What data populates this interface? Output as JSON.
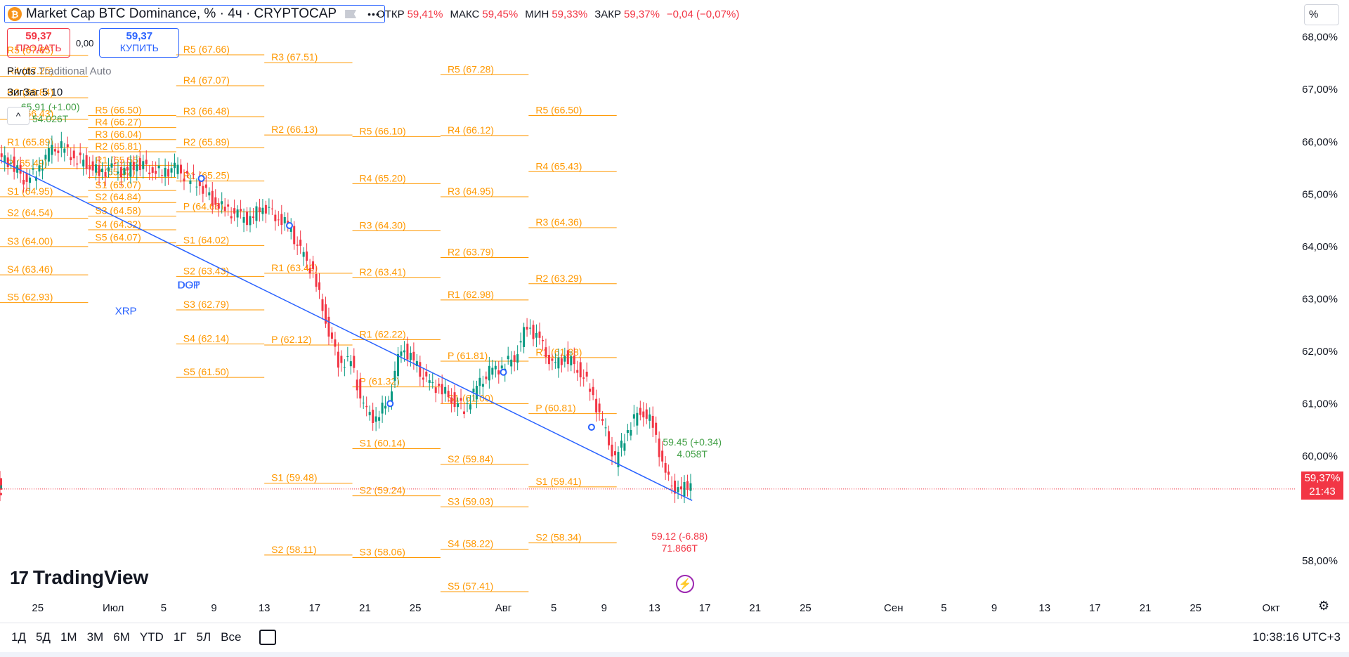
{
  "header": {
    "symbol_title": "Market Cap BTC Dominance, % · 4ч · CRYPTOCAP",
    "btc_icon_glyph": "₿",
    "ohlc": [
      {
        "k": "ОТКР",
        "v": "59,41%"
      },
      {
        "k": "МАКС",
        "v": "59,45%"
      },
      {
        "k": "МИН",
        "v": "59,33%"
      },
      {
        "k": "ЗАКР",
        "v": "59,37%"
      },
      {
        "k": "",
        "v": "−0,04 (−0,07%)"
      }
    ]
  },
  "trade": {
    "sell_price": "59,37",
    "sell_label": "ПРОДАТЬ",
    "spread": "0,00",
    "buy_price": "59,37",
    "buy_label": "КУПИТЬ"
  },
  "indicators": {
    "pivots_name": "Pivots",
    "pivots_params": "Traditional Auto",
    "zigzag_name": "ЗигЗаг",
    "zigzag_params": "5 10",
    "collapse_glyph": "^"
  },
  "scale": {
    "unit_button": "%"
  },
  "last_price": {
    "value": "59,37%",
    "countdown": "21:43"
  },
  "branding": {
    "logo_text": "TradingView",
    "logo_mark": "17"
  },
  "bottom_bar": {
    "ranges": [
      "1Д",
      "5Д",
      "1М",
      "3М",
      "6М",
      "YTD",
      "1Г",
      "5Л",
      "Все"
    ],
    "clock": "10:38:16 UTC+3"
  },
  "colors": {
    "up": "#089981",
    "down": "#f23645",
    "pivot": "#ff9800",
    "trend": "#2962ff",
    "grid_text": "#131722",
    "zigzag_up": "#43a047",
    "zigzag_down": "#f23645"
  },
  "chart_data": {
    "type": "candlestick",
    "title": "Market Cap BTC Dominance, %",
    "y_axis": {
      "unit": "%",
      "ticks": [
        "68,00%",
        "67,00%",
        "66,00%",
        "65,00%",
        "64,00%",
        "63,00%",
        "62,00%",
        "61,00%",
        "60,00%",
        "58,00%"
      ],
      "tick_values": [
        68,
        67,
        66,
        65,
        64,
        63,
        62,
        61,
        60,
        58
      ],
      "range": [
        56.9,
        68.6
      ]
    },
    "x_axis": {
      "labels": [
        "25",
        "Июл",
        "5",
        "9",
        "13",
        "17",
        "21",
        "25",
        "Авг",
        "5",
        "9",
        "13",
        "17",
        "21",
        "25",
        "Сен",
        "5",
        "9",
        "13",
        "17",
        "21",
        "25",
        "Окт"
      ],
      "label_dates": [
        "2024-06-25",
        "2024-07-01",
        "2024-07-05",
        "2024-07-09",
        "2024-07-13",
        "2024-07-17",
        "2024-07-21",
        "2024-07-25",
        "2024-08-01",
        "2024-08-05",
        "2024-08-09",
        "2024-08-13",
        "2024-08-17",
        "2024-08-21",
        "2024-08-25",
        "2024-09-01",
        "2024-09-05",
        "2024-09-09",
        "2024-09-13",
        "2024-09-17",
        "2024-09-21",
        "2024-09-25",
        "2024-10-01"
      ],
      "range": [
        "2024-06-22",
        "2024-10-03"
      ]
    },
    "candles_close_path": [
      [
        "2024-06-22",
        65.7
      ],
      [
        "2024-06-23",
        65.6
      ],
      [
        "2024-06-24",
        65.3
      ],
      [
        "2024-06-25",
        65.4
      ],
      [
        "2024-06-26",
        65.8
      ],
      [
        "2024-06-27",
        65.9
      ],
      [
        "2024-06-28",
        65.7
      ],
      [
        "2024-06-29",
        65.6
      ],
      [
        "2024-06-30",
        65.4
      ],
      [
        "2024-07-01",
        65.5
      ],
      [
        "2024-07-02",
        65.4
      ],
      [
        "2024-07-03",
        65.6
      ],
      [
        "2024-07-04",
        65.5
      ],
      [
        "2024-07-05",
        65.4
      ],
      [
        "2024-07-06",
        65.5
      ],
      [
        "2024-07-07",
        65.3
      ],
      [
        "2024-07-08",
        65.2
      ],
      [
        "2024-07-09",
        64.9
      ],
      [
        "2024-07-10",
        64.7
      ],
      [
        "2024-07-11",
        64.6
      ],
      [
        "2024-07-12",
        64.5
      ],
      [
        "2024-07-13",
        64.8
      ],
      [
        "2024-07-14",
        64.6
      ],
      [
        "2024-07-15",
        64.4
      ],
      [
        "2024-07-16",
        63.9
      ],
      [
        "2024-07-17",
        63.5
      ],
      [
        "2024-07-18",
        62.6
      ],
      [
        "2024-07-19",
        61.8
      ],
      [
        "2024-07-20",
        61.8
      ],
      [
        "2024-07-21",
        60.9
      ],
      [
        "2024-07-22",
        60.7
      ],
      [
        "2024-07-23",
        61.1
      ],
      [
        "2024-07-24",
        62.1
      ],
      [
        "2024-07-25",
        61.8
      ],
      [
        "2024-07-26",
        61.4
      ],
      [
        "2024-07-27",
        61.3
      ],
      [
        "2024-07-28",
        61.1
      ],
      [
        "2024-07-29",
        60.9
      ],
      [
        "2024-07-30",
        61.3
      ],
      [
        "2024-07-31",
        61.6
      ],
      [
        "2024-08-01",
        61.7
      ],
      [
        "2024-08-02",
        61.9
      ],
      [
        "2024-08-03",
        62.5
      ],
      [
        "2024-08-04",
        62.2
      ],
      [
        "2024-08-05",
        61.7
      ],
      [
        "2024-08-06",
        61.9
      ],
      [
        "2024-08-07",
        61.7
      ],
      [
        "2024-08-08",
        61.3
      ],
      [
        "2024-08-09",
        60.6
      ],
      [
        "2024-08-10",
        59.9
      ],
      [
        "2024-08-11",
        60.5
      ],
      [
        "2024-08-12",
        60.9
      ],
      [
        "2024-08-13",
        60.6
      ],
      [
        "2024-08-14",
        59.6
      ],
      [
        "2024-08-15",
        59.3
      ],
      [
        "2024-08-16",
        59.5
      ],
      [
        "2024-08-16T12",
        59.37
      ]
    ],
    "last_value": 59.37,
    "trend_line": [
      [
        "2024-06-22",
        65.65
      ],
      [
        "2024-08-16",
        59.15
      ]
    ],
    "zigzag_points": [
      {
        "label": "54.026T",
        "value": "65.91 (+1.00)"
      },
      {
        "label": "4.058T",
        "value": "59.45 (+0.34)"
      },
      {
        "label": "71.866T",
        "value": "59.12 (-6.88)"
      }
    ],
    "annotations": [
      "XRP",
      "DGP",
      "DOT"
    ],
    "pivot_blocks": [
      {
        "start": "2024-06-22",
        "end": "2024-06-29",
        "levels": [
          [
            "R5",
            67.65
          ],
          [
            "R4",
            67.25
          ],
          [
            "R3",
            66.84
          ],
          [
            "R2",
            66.43
          ],
          [
            "R1",
            65.89
          ],
          [
            "P",
            65.49
          ],
          [
            "S1",
            64.95
          ],
          [
            "S2",
            64.54
          ],
          [
            "S3",
            64.0
          ],
          [
            "S4",
            63.46
          ],
          [
            "S5",
            62.93
          ]
        ]
      },
      {
        "start": "2024-06-29",
        "end": "2024-07-06",
        "levels": [
          [
            "R5",
            66.5
          ],
          [
            "R4",
            66.27
          ],
          [
            "R3",
            66.04
          ],
          [
            "R2",
            65.81
          ],
          [
            "R1",
            65.55
          ],
          [
            "P",
            65.32
          ],
          [
            "S1",
            65.07
          ],
          [
            "S2",
            64.84
          ],
          [
            "S3",
            64.58
          ],
          [
            "S4",
            64.32
          ],
          [
            "S5",
            64.07
          ]
        ]
      },
      {
        "start": "2024-07-06",
        "end": "2024-07-13",
        "levels": [
          [
            "R5",
            67.66
          ],
          [
            "R4",
            67.07
          ],
          [
            "R3",
            66.48
          ],
          [
            "R2",
            65.89
          ],
          [
            "R1",
            65.25
          ],
          [
            "P",
            64.66
          ],
          [
            "S1",
            64.02
          ],
          [
            "S2",
            63.43
          ],
          [
            "S3",
            62.79
          ],
          [
            "S4",
            62.14
          ],
          [
            "S5",
            61.5
          ]
        ]
      },
      {
        "start": "2024-07-13",
        "end": "2024-07-20",
        "levels": [
          [
            "R3",
            67.51
          ],
          [
            "R2",
            66.13
          ],
          [
            "R1",
            63.49
          ],
          [
            "P",
            62.12
          ],
          [
            "S1",
            59.48
          ],
          [
            "S2",
            58.11
          ]
        ]
      },
      {
        "start": "2024-07-20",
        "end": "2024-07-27",
        "levels": [
          [
            "R5",
            66.1
          ],
          [
            "R4",
            65.2
          ],
          [
            "R3",
            64.3
          ],
          [
            "R2",
            63.41
          ],
          [
            "R1",
            62.22
          ],
          [
            "P",
            61.32
          ],
          [
            "S1",
            60.14
          ],
          [
            "S2",
            59.24
          ],
          [
            "S3",
            58.06
          ]
        ]
      },
      {
        "start": "2024-07-27",
        "end": "2024-08-03",
        "levels": [
          [
            "R5",
            67.28
          ],
          [
            "R4",
            66.12
          ],
          [
            "R3",
            64.95
          ],
          [
            "R2",
            63.79
          ],
          [
            "R1",
            62.98
          ],
          [
            "P",
            61.81
          ],
          [
            "S1",
            61.0
          ],
          [
            "S2",
            59.84
          ],
          [
            "S3",
            59.03
          ],
          [
            "S4",
            58.22
          ],
          [
            "S5",
            57.41
          ]
        ]
      },
      {
        "start": "2024-08-03",
        "end": "2024-08-10",
        "levels": [
          [
            "R5",
            66.5
          ],
          [
            "R4",
            65.43
          ],
          [
            "R3",
            64.36
          ],
          [
            "R2",
            63.29
          ],
          [
            "R1",
            61.88
          ],
          [
            "P",
            60.81
          ],
          [
            "S1",
            59.41
          ],
          [
            "S2",
            58.34
          ]
        ]
      }
    ]
  }
}
